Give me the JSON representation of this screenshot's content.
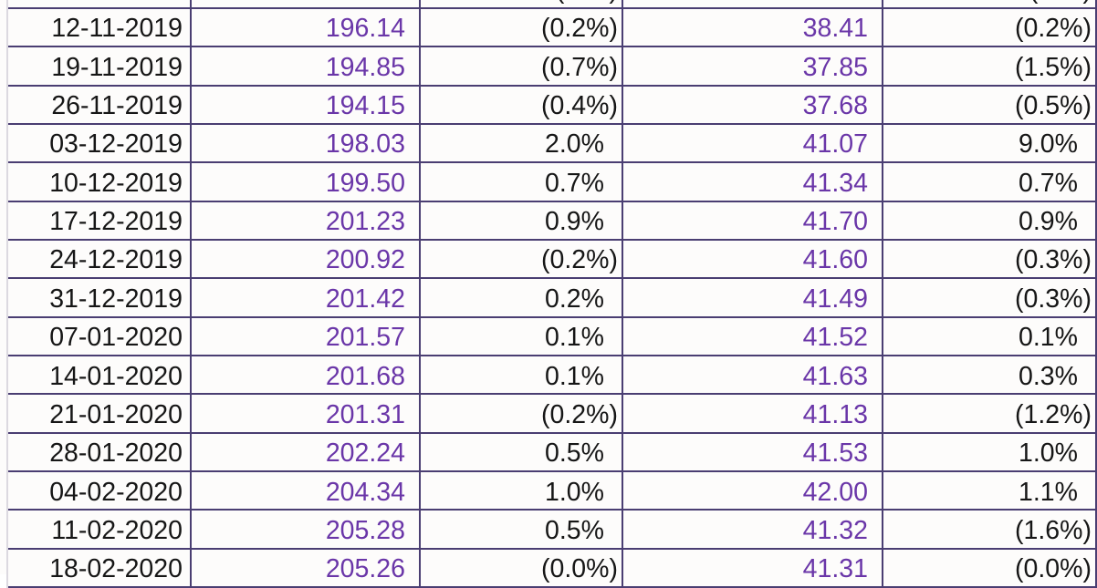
{
  "table": {
    "clipped_top_row": {
      "date": "",
      "value1": "",
      "pct1": "( . %)",
      "value2": "",
      "pct2": "( . %)"
    },
    "rows": [
      {
        "date": "12-11-2019",
        "value1": "196.14",
        "pct1": "(0.2%)",
        "value2": "38.41",
        "pct2": "(0.2%)"
      },
      {
        "date": "19-11-2019",
        "value1": "194.85",
        "pct1": "(0.7%)",
        "value2": "37.85",
        "pct2": "(1.5%)"
      },
      {
        "date": "26-11-2019",
        "value1": "194.15",
        "pct1": "(0.4%)",
        "value2": "37.68",
        "pct2": "(0.5%)"
      },
      {
        "date": "03-12-2019",
        "value1": "198.03",
        "pct1": "2.0%",
        "value2": "41.07",
        "pct2": "9.0%"
      },
      {
        "date": "10-12-2019",
        "value1": "199.50",
        "pct1": "0.7%",
        "value2": "41.34",
        "pct2": "0.7%"
      },
      {
        "date": "17-12-2019",
        "value1": "201.23",
        "pct1": "0.9%",
        "value2": "41.70",
        "pct2": "0.9%"
      },
      {
        "date": "24-12-2019",
        "value1": "200.92",
        "pct1": "(0.2%)",
        "value2": "41.60",
        "pct2": "(0.3%)"
      },
      {
        "date": "31-12-2019",
        "value1": "201.42",
        "pct1": "0.2%",
        "value2": "41.49",
        "pct2": "(0.3%)"
      },
      {
        "date": "07-01-2020",
        "value1": "201.57",
        "pct1": "0.1%",
        "value2": "41.52",
        "pct2": "0.1%"
      },
      {
        "date": "14-01-2020",
        "value1": "201.68",
        "pct1": "0.1%",
        "value2": "41.63",
        "pct2": "0.3%"
      },
      {
        "date": "21-01-2020",
        "value1": "201.31",
        "pct1": "(0.2%)",
        "value2": "41.13",
        "pct2": "(1.2%)"
      },
      {
        "date": "28-01-2020",
        "value1": "202.24",
        "pct1": "0.5%",
        "value2": "41.53",
        "pct2": "1.0%"
      },
      {
        "date": "04-02-2020",
        "value1": "204.34",
        "pct1": "1.0%",
        "value2": "42.00",
        "pct2": "1.1%"
      },
      {
        "date": "11-02-2020",
        "value1": "205.28",
        "pct1": "0.5%",
        "value2": "41.32",
        "pct2": "(1.6%)"
      },
      {
        "date": "18-02-2020",
        "value1": "205.26",
        "pct1": "(0.0%)",
        "value2": "41.31",
        "pct2": "(0.0%)"
      }
    ],
    "colors": {
      "value_text": "#6A36A8",
      "text": "#161616",
      "grid_line": "#4A3E72",
      "left_edge": "#DCD9E0",
      "cell_bg": "#FDFCFB"
    }
  }
}
